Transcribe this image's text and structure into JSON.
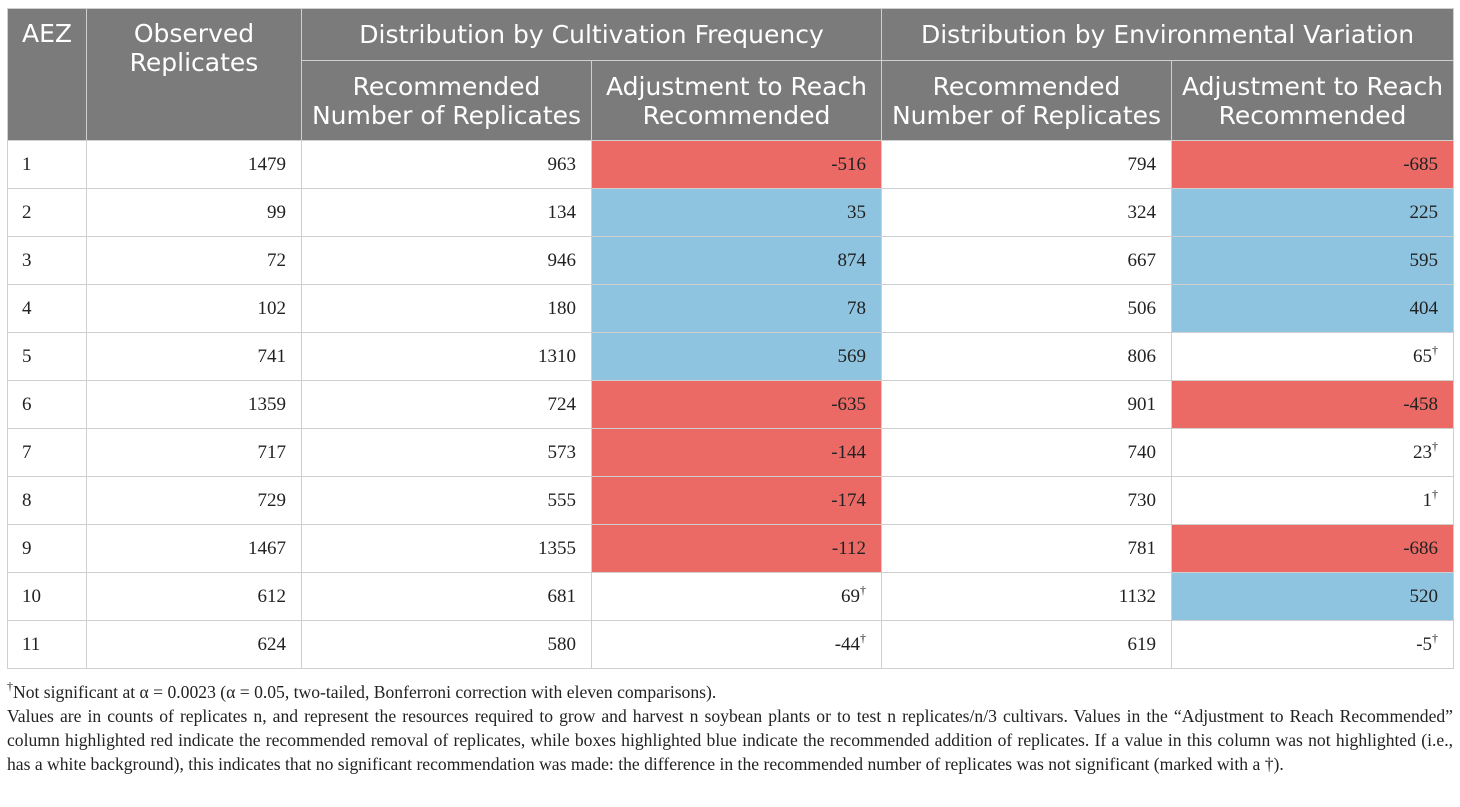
{
  "table": {
    "headers": {
      "aez": "AEZ",
      "observed": "Observed Replicates",
      "group_cultivation": "Distribution by Cultivation Frequency",
      "group_environment": "Distribution by Environmental Variation",
      "recommended_1": "Recommended Number of Replicates",
      "adjustment_1": "Adjustment to Reach Recommended",
      "recommended_2": "Recommended Number of Replicates",
      "adjustment_2": "Adjustment to Reach Recommended"
    },
    "rows": [
      {
        "aez": "1",
        "observed": "1479",
        "rec_cult": "963",
        "adj_cult": "-516",
        "adj_cult_mark": "",
        "adj_cult_status": "red",
        "rec_env": "794",
        "adj_env": "-685",
        "adj_env_mark": "",
        "adj_env_status": "red"
      },
      {
        "aez": "2",
        "observed": "99",
        "rec_cult": "134",
        "adj_cult": "35",
        "adj_cult_mark": "",
        "adj_cult_status": "blue",
        "rec_env": "324",
        "adj_env": "225",
        "adj_env_mark": "",
        "adj_env_status": "blue"
      },
      {
        "aez": "3",
        "observed": "72",
        "rec_cult": "946",
        "adj_cult": "874",
        "adj_cult_mark": "",
        "adj_cult_status": "blue",
        "rec_env": "667",
        "adj_env": "595",
        "adj_env_mark": "",
        "adj_env_status": "blue"
      },
      {
        "aez": "4",
        "observed": "102",
        "rec_cult": "180",
        "adj_cult": "78",
        "adj_cult_mark": "",
        "adj_cult_status": "blue",
        "rec_env": "506",
        "adj_env": "404",
        "adj_env_mark": "",
        "adj_env_status": "blue"
      },
      {
        "aez": "5",
        "observed": "741",
        "rec_cult": "1310",
        "adj_cult": "569",
        "adj_cult_mark": "",
        "adj_cult_status": "blue",
        "rec_env": "806",
        "adj_env": "65",
        "adj_env_mark": "†",
        "adj_env_status": "none"
      },
      {
        "aez": "6",
        "observed": "1359",
        "rec_cult": "724",
        "adj_cult": "-635",
        "adj_cult_mark": "",
        "adj_cult_status": "red",
        "rec_env": "901",
        "adj_env": "-458",
        "adj_env_mark": "",
        "adj_env_status": "red"
      },
      {
        "aez": "7",
        "observed": "717",
        "rec_cult": "573",
        "adj_cult": "-144",
        "adj_cult_mark": "",
        "adj_cult_status": "red",
        "rec_env": "740",
        "adj_env": "23",
        "adj_env_mark": "†",
        "adj_env_status": "none"
      },
      {
        "aez": "8",
        "observed": "729",
        "rec_cult": "555",
        "adj_cult": "-174",
        "adj_cult_mark": "",
        "adj_cult_status": "red",
        "rec_env": "730",
        "adj_env": "1",
        "adj_env_mark": "†",
        "adj_env_status": "none"
      },
      {
        "aez": "9",
        "observed": "1467",
        "rec_cult": "1355",
        "adj_cult": "-112",
        "adj_cult_mark": "",
        "adj_cult_status": "red",
        "rec_env": "781",
        "adj_env": "-686",
        "adj_env_mark": "",
        "adj_env_status": "red"
      },
      {
        "aez": "10",
        "observed": "612",
        "rec_cult": "681",
        "adj_cult": "69",
        "adj_cult_mark": "†",
        "adj_cult_status": "none",
        "rec_env": "1132",
        "adj_env": "520",
        "adj_env_mark": "",
        "adj_env_status": "blue"
      },
      {
        "aez": "11",
        "observed": "624",
        "rec_cult": "580",
        "adj_cult": "-44",
        "adj_cult_mark": "†",
        "adj_cult_status": "none",
        "rec_env": "619",
        "adj_env": "-5",
        "adj_env_mark": "†",
        "adj_env_status": "none"
      }
    ]
  },
  "notes": {
    "dagger": "†",
    "note1": "Not significant at α = 0.0023 (α = 0.05, two-tailed, Bonferroni correction with eleven comparisons).",
    "note2": "Values are in counts of replicates n, and represent the resources required to grow and harvest n soybean plants or to test n replicates/n/3 cultivars. Values in the “Adjustment to Reach Recommended” column highlighted red indicate the recommended removal of replicates, while boxes highlighted blue indicate the recommended addition of replicates. If a value in this column was not highlighted (i.e., has a white background), this indicates that no significant recommendation was made: the difference in the recommended number of replicates was not significant (marked with a †)."
  },
  "colors": {
    "header_bg": "#7b7b7b",
    "removal_red": "#ec6a66",
    "addition_blue": "#8ec4e0",
    "grid": "#cfcfcf"
  }
}
